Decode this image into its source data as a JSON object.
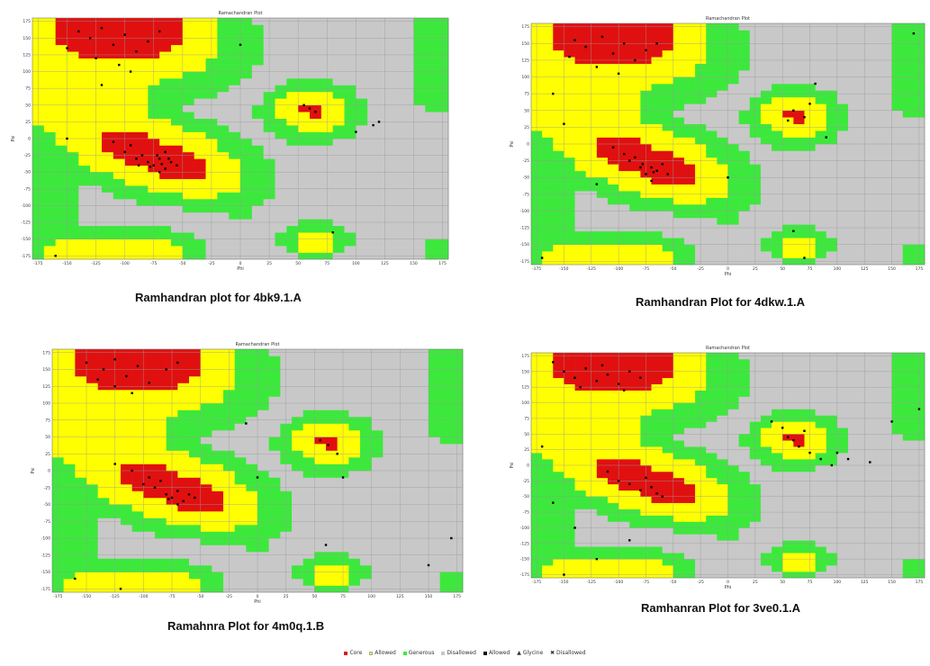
{
  "chart_data": [
    {
      "type": "scatter",
      "title": "Ramachandran Plot",
      "caption": "Ramhandran plot for 4bk9.1.A",
      "xlabel": "Phi",
      "ylabel": "Psi",
      "xlim": [
        -180,
        180
      ],
      "ylim": [
        -180,
        180
      ],
      "xticks": [
        "-175",
        "-150",
        "-125",
        "-100",
        "-75",
        "-50",
        "-25",
        "0",
        "25",
        "50",
        "75",
        "100",
        "125",
        "150",
        "175"
      ],
      "yticks": [
        "175",
        "150",
        "125",
        "100",
        "75",
        "50",
        "25",
        "0",
        "-25",
        "-50",
        "-75",
        "-100",
        "-125",
        "-150",
        "-175"
      ],
      "grid": true,
      "points": [
        [
          -140,
          160
        ],
        [
          -130,
          150
        ],
        [
          -120,
          165
        ],
        [
          -110,
          140
        ],
        [
          -100,
          155
        ],
        [
          -90,
          130
        ],
        [
          -125,
          120
        ],
        [
          -80,
          145
        ],
        [
          -150,
          135
        ],
        [
          -70,
          160
        ],
        [
          -105,
          110
        ],
        [
          -95,
          100
        ],
        [
          -100,
          -20
        ],
        [
          -90,
          -30
        ],
        [
          -80,
          -35
        ],
        [
          -75,
          -40
        ],
        [
          -70,
          -30
        ],
        [
          -65,
          -45
        ],
        [
          -60,
          -35
        ],
        [
          -85,
          -25
        ],
        [
          -95,
          -10
        ],
        [
          -110,
          -5
        ],
        [
          -70,
          -50
        ],
        [
          -55,
          -40
        ],
        [
          -65,
          -20
        ],
        [
          -78,
          -42
        ],
        [
          -68,
          -38
        ],
        [
          -62,
          -30
        ],
        [
          -88,
          -40
        ],
        [
          -72,
          -25
        ],
        [
          60,
          45
        ],
        [
          65,
          40
        ],
        [
          55,
          50
        ],
        [
          120,
          25
        ],
        [
          100,
          10
        ],
        [
          -150,
          0
        ],
        [
          80,
          -140
        ],
        [
          -120,
          80
        ],
        [
          0,
          140
        ],
        [
          115,
          20
        ],
        [
          -160,
          -175
        ]
      ]
    },
    {
      "type": "scatter",
      "title": "Ramachandran Plot",
      "caption": "Ramhandran Plot for 4dkw.1.A",
      "xlabel": "Phi",
      "ylabel": "Psi",
      "xlim": [
        -180,
        180
      ],
      "ylim": [
        -180,
        180
      ],
      "xticks": [
        "-175",
        "-150",
        "-125",
        "-100",
        "-75",
        "-50",
        "-25",
        "0",
        "25",
        "50",
        "75",
        "100",
        "125",
        "150",
        "175"
      ],
      "yticks": [
        "175",
        "150",
        "125",
        "100",
        "75",
        "50",
        "25",
        "0",
        "-25",
        "-50",
        "-75",
        "-100",
        "-125",
        "-150",
        "-175"
      ],
      "grid": true,
      "points": [
        [
          -140,
          155
        ],
        [
          -130,
          145
        ],
        [
          -115,
          160
        ],
        [
          -105,
          135
        ],
        [
          -95,
          150
        ],
        [
          -85,
          125
        ],
        [
          -120,
          115
        ],
        [
          -75,
          140
        ],
        [
          -145,
          130
        ],
        [
          -65,
          150
        ],
        [
          -100,
          105
        ],
        [
          -90,
          -25
        ],
        [
          -80,
          -35
        ],
        [
          -75,
          -45
        ],
        [
          -70,
          -35
        ],
        [
          -65,
          -40
        ],
        [
          -60,
          -30
        ],
        [
          -85,
          -20
        ],
        [
          -95,
          -15
        ],
        [
          -105,
          -5
        ],
        [
          -70,
          -55
        ],
        [
          -55,
          -45
        ],
        [
          -78,
          -30
        ],
        [
          -68,
          -42
        ],
        [
          60,
          50
        ],
        [
          70,
          40
        ],
        [
          55,
          35
        ],
        [
          80,
          90
        ],
        [
          75,
          60
        ],
        [
          90,
          10
        ],
        [
          -160,
          75
        ],
        [
          -150,
          30
        ],
        [
          -120,
          -60
        ],
        [
          0,
          -50
        ],
        [
          60,
          -130
        ],
        [
          70,
          -170
        ],
        [
          170,
          165
        ],
        [
          -170,
          -170
        ]
      ]
    },
    {
      "type": "scatter",
      "title": "Ramachandran Plot",
      "caption": "Ramahnra Plot for 4m0q.1.B",
      "xlabel": "Phi",
      "ylabel": "Psi",
      "xlim": [
        -180,
        180
      ],
      "ylim": [
        -180,
        180
      ],
      "xticks": [
        "-175",
        "-150",
        "-125",
        "-100",
        "-75",
        "-50",
        "-25",
        "0",
        "25",
        "50",
        "75",
        "100",
        "125",
        "150",
        "175"
      ],
      "yticks": [
        "175",
        "150",
        "125",
        "100",
        "75",
        "50",
        "25",
        "0",
        "-25",
        "-50",
        "-75",
        "-100",
        "-125",
        "-150",
        "-175"
      ],
      "grid": true,
      "points": [
        [
          -150,
          160
        ],
        [
          -135,
          150
        ],
        [
          -125,
          165
        ],
        [
          -115,
          140
        ],
        [
          -105,
          155
        ],
        [
          -95,
          130
        ],
        [
          -125,
          125
        ],
        [
          -80,
          150
        ],
        [
          -140,
          135
        ],
        [
          -70,
          160
        ],
        [
          -110,
          115
        ],
        [
          -100,
          -20
        ],
        [
          -90,
          -25
        ],
        [
          -80,
          -35
        ],
        [
          -75,
          -40
        ],
        [
          -70,
          -30
        ],
        [
          -65,
          -45
        ],
        [
          -60,
          -35
        ],
        [
          -85,
          -15
        ],
        [
          -95,
          -10
        ],
        [
          -110,
          0
        ],
        [
          -70,
          -50
        ],
        [
          -55,
          -40
        ],
        [
          -125,
          10
        ],
        [
          -78,
          -42
        ],
        [
          55,
          45
        ],
        [
          62,
          38
        ],
        [
          70,
          25
        ],
        [
          75,
          -10
        ],
        [
          0,
          -10
        ],
        [
          -10,
          70
        ],
        [
          60,
          -110
        ],
        [
          150,
          -140
        ],
        [
          170,
          -100
        ],
        [
          -160,
          -160
        ],
        [
          -120,
          -175
        ]
      ]
    },
    {
      "type": "scatter",
      "title": "Ramachandran Plot",
      "caption": "Ramhanran Plot for 3ve0.1.A",
      "xlabel": "Phi",
      "ylabel": "Psi",
      "xlim": [
        -180,
        180
      ],
      "ylim": [
        -180,
        180
      ],
      "xticks": [
        "-175",
        "-150",
        "-125",
        "-100",
        "-75",
        "-50",
        "-25",
        "0",
        "25",
        "50",
        "75",
        "100",
        "125",
        "150",
        "175"
      ],
      "yticks": [
        "175",
        "150",
        "125",
        "100",
        "75",
        "50",
        "25",
        "0",
        "-25",
        "-50",
        "-75",
        "-100",
        "-125",
        "-150",
        "-175"
      ],
      "grid": true,
      "points": [
        [
          -150,
          150
        ],
        [
          -140,
          140
        ],
        [
          -130,
          155
        ],
        [
          -120,
          135
        ],
        [
          -110,
          145
        ],
        [
          -100,
          130
        ],
        [
          -90,
          150
        ],
        [
          -80,
          140
        ],
        [
          -135,
          125
        ],
        [
          -115,
          160
        ],
        [
          -95,
          120
        ],
        [
          -160,
          165
        ],
        [
          -100,
          -25
        ],
        [
          -90,
          -30
        ],
        [
          -80,
          -40
        ],
        [
          -70,
          -35
        ],
        [
          -65,
          -45
        ],
        [
          -75,
          -20
        ],
        [
          -60,
          -50
        ],
        [
          -110,
          -10
        ],
        [
          40,
          70
        ],
        [
          50,
          60
        ],
        [
          55,
          45
        ],
        [
          60,
          40
        ],
        [
          65,
          30
        ],
        [
          75,
          20
        ],
        [
          85,
          10
        ],
        [
          95,
          0
        ],
        [
          70,
          55
        ],
        [
          100,
          20
        ],
        [
          110,
          10
        ],
        [
          130,
          5
        ],
        [
          150,
          70
        ],
        [
          -170,
          30
        ],
        [
          -160,
          -60
        ],
        [
          -140,
          -100
        ],
        [
          -120,
          -150
        ],
        [
          -90,
          -120
        ],
        [
          -150,
          -175
        ],
        [
          175,
          90
        ]
      ]
    }
  ],
  "legend": {
    "items": [
      {
        "label": "Core",
        "color": "#d7191c",
        "shape": "square"
      },
      {
        "label": "Allowed",
        "color": "#ffff00",
        "shape": "square"
      },
      {
        "label": "Generous",
        "color": "#33ee33",
        "shape": "square"
      },
      {
        "label": "Disallowed",
        "color": "#c8c8c8",
        "shape": "square"
      },
      {
        "label": "Allowed",
        "color": "#000000",
        "shape": "square"
      },
      {
        "label": "Glycine",
        "color": "#000000",
        "shape": "triangle"
      },
      {
        "label": "Disallowed",
        "color": "#000000",
        "shape": "cross"
      }
    ]
  },
  "colors": {
    "core": "#e01010",
    "allowed": "#ffff00",
    "generous": "#3de83d",
    "disallowed": "#c8c8c8",
    "grid": "#9a9a9a",
    "point": "#000000"
  }
}
